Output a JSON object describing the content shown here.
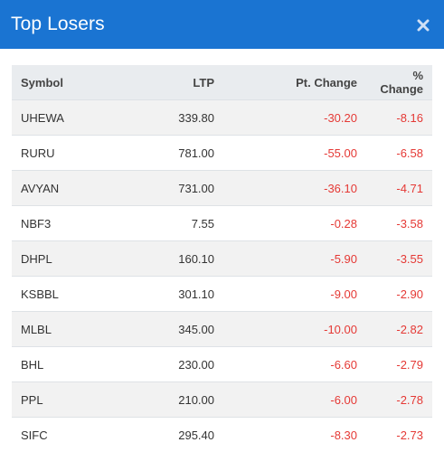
{
  "title": "Top Losers",
  "colors": {
    "header_bg": "#1a74d2",
    "negative": "#e53935"
  },
  "close_icon": "close-icon",
  "table": {
    "headers": {
      "symbol": "Symbol",
      "ltp": "LTP",
      "pt_change": "Pt. Change",
      "pct_change": "% Change"
    },
    "rows": [
      {
        "symbol": "UHEWA",
        "ltp": "339.80",
        "pt_change": "-30.20",
        "pct_change": "-8.16"
      },
      {
        "symbol": "RURU",
        "ltp": "781.00",
        "pt_change": "-55.00",
        "pct_change": "-6.58"
      },
      {
        "symbol": "AVYAN",
        "ltp": "731.00",
        "pt_change": "-36.10",
        "pct_change": "-4.71"
      },
      {
        "symbol": "NBF3",
        "ltp": "7.55",
        "pt_change": "-0.28",
        "pct_change": "-3.58"
      },
      {
        "symbol": "DHPL",
        "ltp": "160.10",
        "pt_change": "-5.90",
        "pct_change": "-3.55"
      },
      {
        "symbol": "KSBBL",
        "ltp": "301.10",
        "pt_change": "-9.00",
        "pct_change": "-2.90"
      },
      {
        "symbol": "MLBL",
        "ltp": "345.00",
        "pt_change": "-10.00",
        "pct_change": "-2.82"
      },
      {
        "symbol": "BHL",
        "ltp": "230.00",
        "pt_change": "-6.60",
        "pct_change": "-2.79"
      },
      {
        "symbol": "PPL",
        "ltp": "210.00",
        "pt_change": "-6.00",
        "pct_change": "-2.78"
      },
      {
        "symbol": "SIFC",
        "ltp": "295.40",
        "pt_change": "-8.30",
        "pct_change": "-2.73"
      }
    ]
  }
}
